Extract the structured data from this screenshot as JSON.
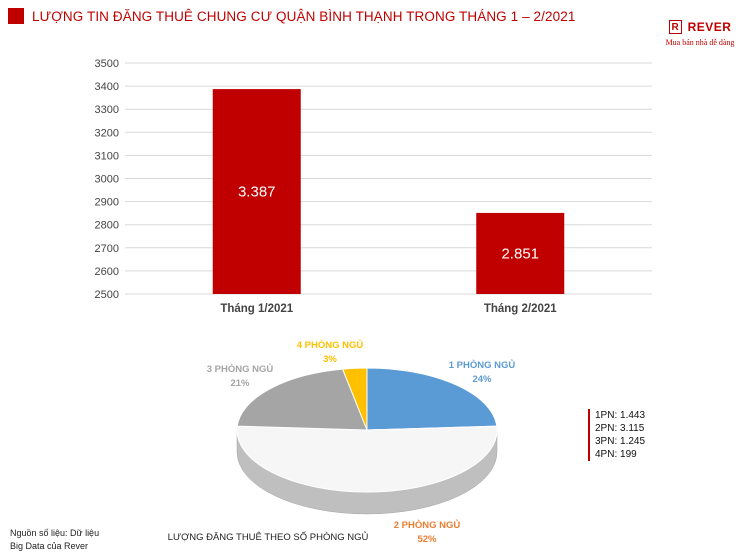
{
  "header": {
    "title": "LƯỢNG TIN ĐĂNG THUÊ CHUNG CƯ QUẬN BÌNH THẠNH TRONG THÁNG 1 – 2/2021"
  },
  "brand": {
    "logo_letter": "R",
    "name": "REVER",
    "tagline": "Mua bán nhà dễ dàng",
    "color": "#c00000"
  },
  "chart_data": [
    {
      "type": "bar",
      "categories": [
        "Tháng 1/2021",
        "Tháng 2/2021"
      ],
      "values": [
        3387,
        2851
      ],
      "data_labels": [
        "3.387",
        "2.851"
      ],
      "ylim": [
        2500,
        3500
      ],
      "yticks": [
        2500,
        2600,
        2700,
        2800,
        2900,
        3000,
        3100,
        3200,
        3300,
        3400,
        3500
      ],
      "bar_color": "#c00000",
      "grid": true
    },
    {
      "type": "pie",
      "title": "LƯỢNG ĐĂNG THUÊ THEO SỐ PHÒNG NGỦ",
      "slices": [
        {
          "label": "1 PHÒNG NGỦ",
          "percent_label": "24%",
          "value": 24,
          "color": "#5b9bd5"
        },
        {
          "label": "2 PHÒNG NGỦ",
          "percent_label": "52%",
          "value": 52,
          "color": "#ed7d31"
        },
        {
          "label": "3 PHÒNG NGỦ",
          "percent_label": "21%",
          "value": 21,
          "color": "#a5a5a5"
        },
        {
          "label": "4 PHÒNG NGỦ",
          "percent_label": "3%",
          "value": 3,
          "color": "#ffc000"
        }
      ]
    }
  ],
  "legend": {
    "items": [
      "1PN: 1.443",
      "2PN: 3.115",
      "3PN: 1.245",
      "4PN: 199"
    ]
  },
  "source": {
    "line1": "Nguồn số liệu: Dữ liệu",
    "line2": "Big Data của Rever"
  }
}
